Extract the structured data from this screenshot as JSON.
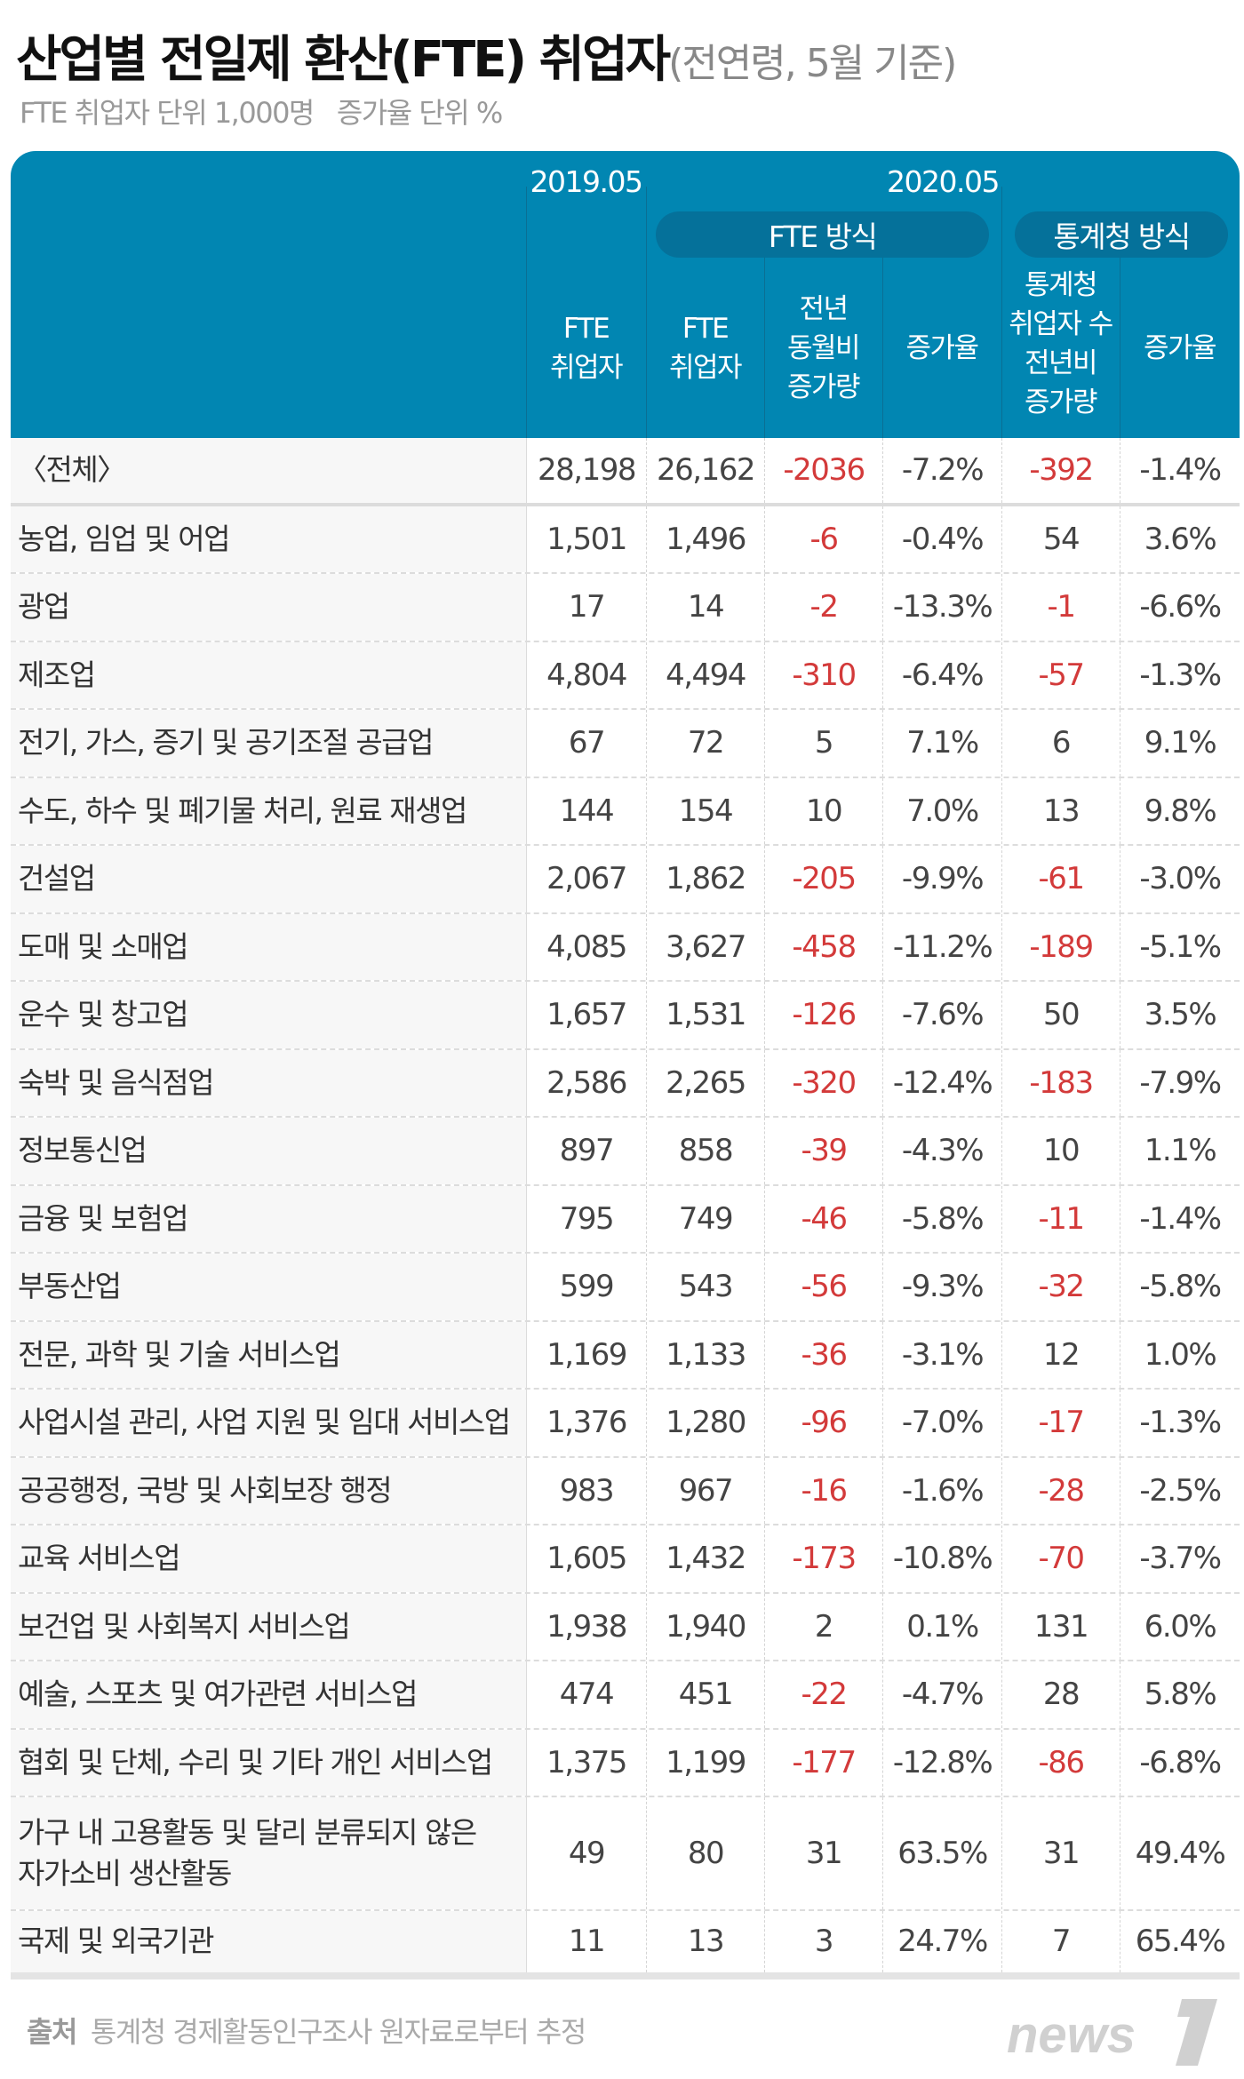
{
  "title": {
    "main": "산업별 전일제 환산(FTE) 취업자",
    "sub": "(전연령, 5월 기준)"
  },
  "units": [
    "FTE 취업자 단위 1,000명",
    "증가율 단위 %"
  ],
  "header": {
    "year2019": "2019.05",
    "year2020": "2020.05",
    "group_fte": "FTE 방식",
    "group_stat": "통계청 방식",
    "cols": [
      "FTE\n취업자",
      "FTE\n취업자",
      "전년\n동월비\n증가량",
      "증가율",
      "통계청\n취업자 수\n전년비\n증가량",
      "증가율"
    ]
  },
  "colors": {
    "header": "#0186b2",
    "pill": "#05719a",
    "negative": "#d33a3a"
  },
  "rows": [
    {
      "label": "〈전체〉",
      "values": [
        "28,198",
        "26,162",
        "-2036",
        "-7.2%",
        "-392",
        "-1.4%"
      ]
    },
    {
      "label": "농업, 임업 및 어업",
      "values": [
        "1,501",
        "1,496",
        "-6",
        "-0.4%",
        "54",
        "3.6%"
      ]
    },
    {
      "label": "광업",
      "values": [
        "17",
        "14",
        "-2",
        "-13.3%",
        "-1",
        "-6.6%"
      ]
    },
    {
      "label": "제조업",
      "values": [
        "4,804",
        "4,494",
        "-310",
        "-6.4%",
        "-57",
        "-1.3%"
      ]
    },
    {
      "label": "전기, 가스, 증기 및 공기조절 공급업",
      "values": [
        "67",
        "72",
        "5",
        "7.1%",
        "6",
        "9.1%"
      ]
    },
    {
      "label": "수도, 하수 및 폐기물 처리, 원료 재생업",
      "values": [
        "144",
        "154",
        "10",
        "7.0%",
        "13",
        "9.8%"
      ]
    },
    {
      "label": "건설업",
      "values": [
        "2,067",
        "1,862",
        "-205",
        "-9.9%",
        "-61",
        "-3.0%"
      ]
    },
    {
      "label": "도매 및 소매업",
      "values": [
        "4,085",
        "3,627",
        "-458",
        "-11.2%",
        "-189",
        "-5.1%"
      ]
    },
    {
      "label": "운수 및 창고업",
      "values": [
        "1,657",
        "1,531",
        "-126",
        "-7.6%",
        "50",
        "3.5%"
      ]
    },
    {
      "label": "숙박 및 음식점업",
      "values": [
        "2,586",
        "2,265",
        "-320",
        "-12.4%",
        "-183",
        "-7.9%"
      ]
    },
    {
      "label": "정보통신업",
      "values": [
        "897",
        "858",
        "-39",
        "-4.3%",
        "10",
        "1.1%"
      ]
    },
    {
      "label": "금융 및 보험업",
      "values": [
        "795",
        "749",
        "-46",
        "-5.8%",
        "-11",
        "-1.4%"
      ]
    },
    {
      "label": "부동산업",
      "values": [
        "599",
        "543",
        "-56",
        "-9.3%",
        "-32",
        "-5.8%"
      ]
    },
    {
      "label": "전문, 과학 및 기술 서비스업",
      "values": [
        "1,169",
        "1,133",
        "-36",
        "-3.1%",
        "12",
        "1.0%"
      ]
    },
    {
      "label": "사업시설 관리, 사업 지원 및 임대 서비스업",
      "values": [
        "1,376",
        "1,280",
        "-96",
        "-7.0%",
        "-17",
        "-1.3%"
      ]
    },
    {
      "label": "공공행정, 국방 및 사회보장 행정",
      "values": [
        "983",
        "967",
        "-16",
        "-1.6%",
        "-28",
        "-2.5%"
      ]
    },
    {
      "label": "교육 서비스업",
      "values": [
        "1,605",
        "1,432",
        "-173",
        "-10.8%",
        "-70",
        "-3.7%"
      ]
    },
    {
      "label": "보건업 및 사회복지 서비스업",
      "values": [
        "1,938",
        "1,940",
        "2",
        "0.1%",
        "131",
        "6.0%"
      ]
    },
    {
      "label": "예술, 스포츠 및 여가관련 서비스업",
      "values": [
        "474",
        "451",
        "-22",
        "-4.7%",
        "28",
        "5.8%"
      ]
    },
    {
      "label": "협회 및 단체, 수리 및 기타 개인 서비스업",
      "values": [
        "1,375",
        "1,199",
        "-177",
        "-12.8%",
        "-86",
        "-6.8%"
      ]
    },
    {
      "label": "가구 내 고용활동 및 달리 분류되지 않은\n자가소비 생산활동",
      "values": [
        "49",
        "80",
        "31",
        "63.5%",
        "31",
        "49.4%"
      ]
    },
    {
      "label": "국제 및 외국기관",
      "values": [
        "11",
        "13",
        "3",
        "24.7%",
        "7",
        "65.4%"
      ]
    }
  ],
  "footer": {
    "source_label": "출처",
    "source": "통계청 경제활동인구조사 원자료로부터 추정",
    "logo": "news1"
  }
}
